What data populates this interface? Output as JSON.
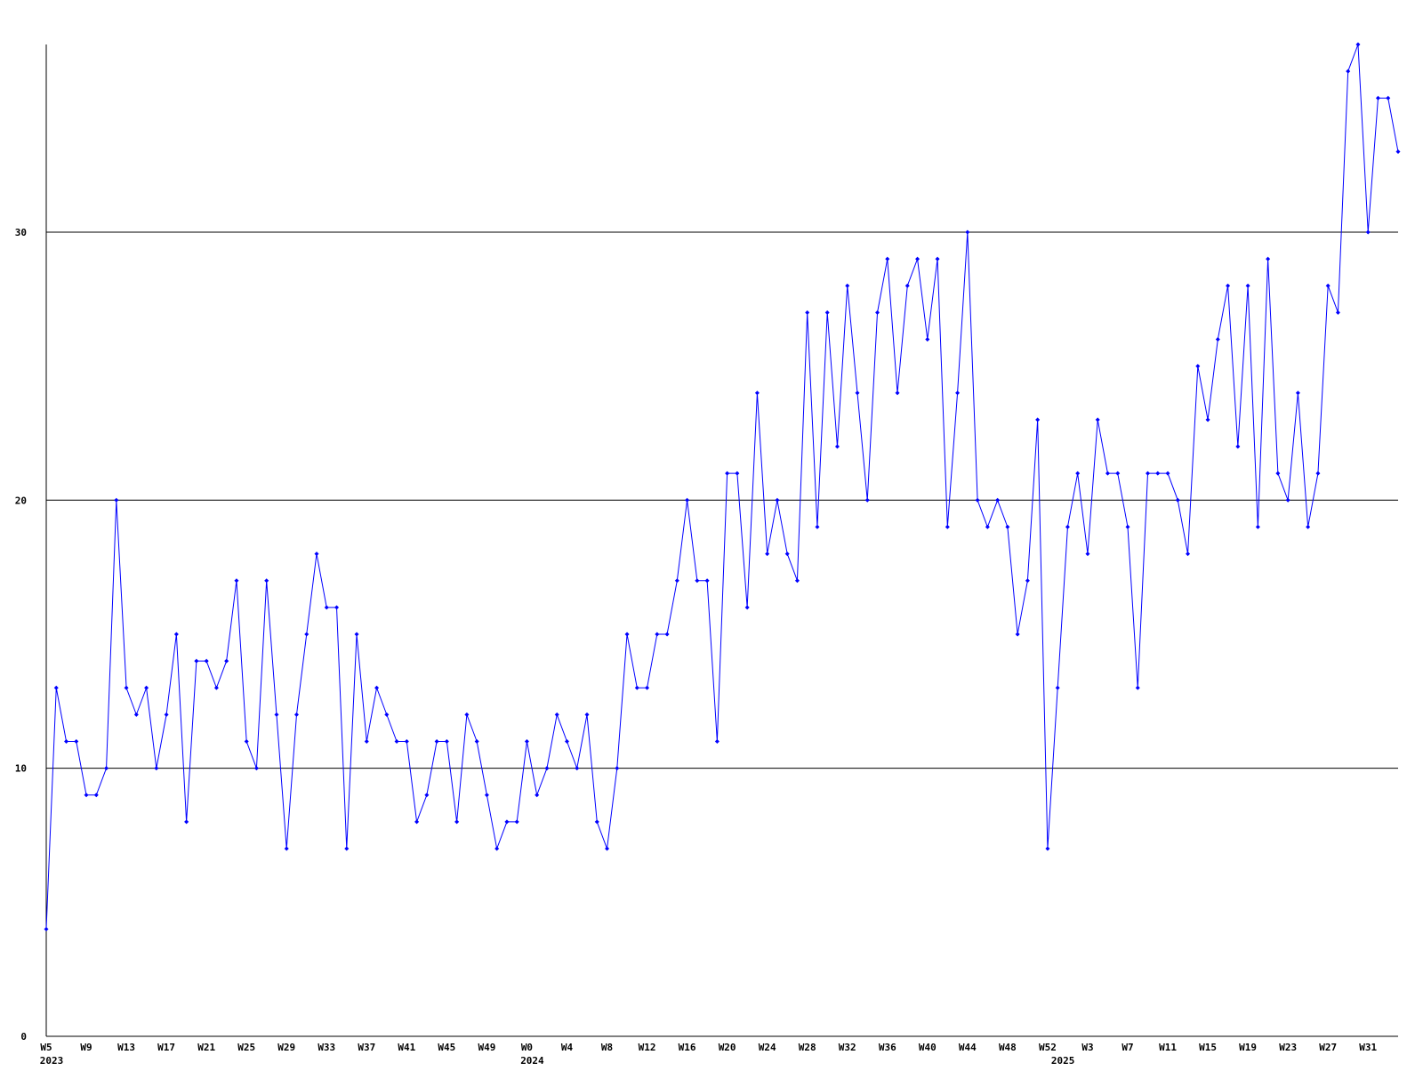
{
  "chart_data": {
    "type": "line",
    "color": "#0000ff",
    "grid": true,
    "ylim": [
      0,
      37
    ],
    "yticks": [
      0,
      10,
      20,
      30
    ],
    "categories": [
      "W5",
      null,
      null,
      null,
      "W9",
      null,
      null,
      null,
      "W13",
      null,
      null,
      null,
      "W17",
      null,
      null,
      null,
      "W21",
      null,
      null,
      null,
      "W25",
      null,
      null,
      null,
      "W29",
      null,
      null,
      null,
      "W33",
      null,
      null,
      null,
      "W37",
      null,
      null,
      null,
      "W41",
      null,
      null,
      null,
      "W45",
      null,
      null,
      null,
      "W49",
      null,
      null,
      null,
      "W0",
      null,
      null,
      null,
      "W4",
      null,
      null,
      null,
      "W8",
      null,
      null,
      null,
      "W12",
      null,
      null,
      null,
      "W16",
      null,
      null,
      null,
      "W20",
      null,
      null,
      null,
      "W24",
      null,
      null,
      null,
      "W28",
      null,
      null,
      null,
      "W32",
      null,
      null,
      null,
      "W36",
      null,
      null,
      null,
      "W40",
      null,
      null,
      null,
      "W44",
      null,
      null,
      null,
      "W48",
      null,
      null,
      null,
      "W52",
      null,
      null,
      null,
      "W3",
      null,
      null,
      null,
      "W7",
      null,
      null,
      null,
      "W11",
      null,
      null,
      null,
      "W15",
      null,
      null,
      null,
      "W19",
      null,
      null,
      null,
      "W23",
      null,
      null,
      null,
      "W27",
      null,
      null,
      null,
      "W31",
      null,
      null,
      null
    ],
    "category_years": [
      "2023",
      null,
      null,
      null,
      null,
      null,
      null,
      null,
      null,
      null,
      null,
      null,
      null,
      null,
      null,
      null,
      null,
      null,
      null,
      null,
      null,
      null,
      null,
      null,
      null,
      null,
      null,
      null,
      null,
      null,
      null,
      null,
      null,
      null,
      null,
      null,
      null,
      null,
      null,
      null,
      null,
      null,
      null,
      null,
      null,
      null,
      null,
      null,
      "2024",
      null,
      null,
      null,
      null,
      null,
      null,
      null,
      null,
      null,
      null,
      null,
      null,
      null,
      null,
      null,
      null,
      null,
      null,
      null,
      null,
      null,
      null,
      null,
      null,
      null,
      null,
      null,
      null,
      null,
      null,
      null,
      null,
      null,
      null,
      null,
      null,
      null,
      null,
      null,
      null,
      null,
      null,
      null,
      null,
      null,
      null,
      null,
      null,
      null,
      null,
      null,
      null,
      "2025",
      null,
      null,
      null,
      null,
      null,
      null,
      null,
      null,
      null,
      null,
      null,
      null,
      null,
      null,
      null,
      null,
      null,
      null,
      null,
      null,
      null,
      null,
      null,
      null,
      null,
      null,
      null,
      null,
      null,
      null,
      null,
      null,
      null,
      null
    ],
    "values": [
      4,
      13,
      11,
      11,
      9,
      9,
      10,
      20,
      13,
      12,
      13,
      10,
      12,
      15,
      8,
      14,
      14,
      13,
      14,
      17,
      11,
      10,
      17,
      12,
      7,
      12,
      15,
      18,
      16,
      16,
      7,
      15,
      11,
      13,
      12,
      11,
      11,
      8,
      9,
      11,
      11,
      8,
      12,
      11,
      9,
      7,
      8,
      8,
      11,
      9,
      10,
      12,
      11,
      10,
      12,
      8,
      7,
      10,
      15,
      13,
      13,
      15,
      15,
      17,
      20,
      17,
      17,
      11,
      21,
      21,
      16,
      24,
      18,
      20,
      18,
      17,
      27,
      19,
      27,
      22,
      28,
      24,
      20,
      27,
      29,
      24,
      28,
      29,
      26,
      29,
      19,
      24,
      30,
      20,
      19,
      20,
      19,
      15,
      17,
      23,
      7,
      13,
      19,
      21,
      18,
      23,
      21,
      21,
      19,
      13,
      21,
      21,
      21,
      20,
      18,
      25,
      23,
      26,
      28,
      22,
      28,
      19,
      29,
      21,
      20,
      24,
      19,
      21,
      28,
      27,
      36,
      37,
      30,
      35,
      35,
      33
    ]
  }
}
